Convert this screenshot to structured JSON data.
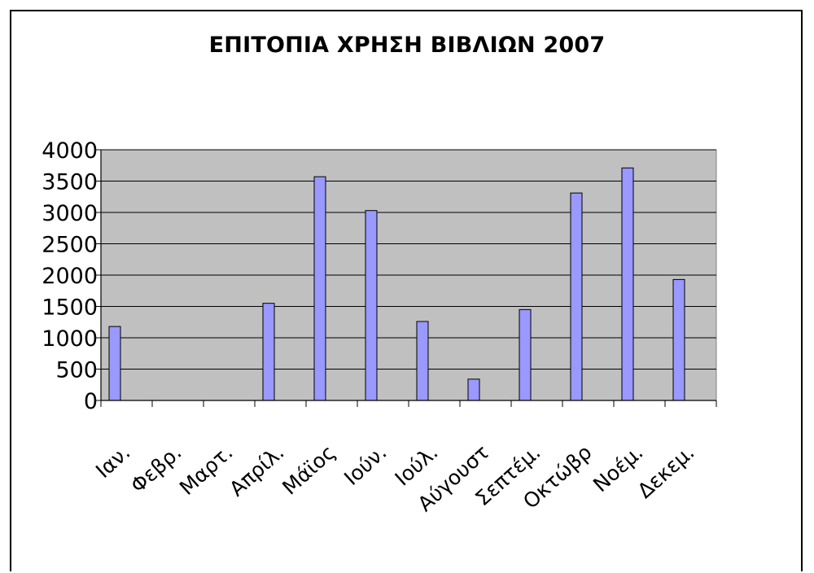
{
  "chart_data": {
    "type": "bar",
    "title": "ΕΠΙΤΟΠΙΑ ΧΡΗΣΗ ΒΙΒΛΙΩΝ 2007",
    "xlabel": "",
    "ylabel": "",
    "categories": [
      "Ιαν.",
      "Φεβρ.",
      "Μαρτ.",
      "Απρίλ.",
      "Μάϊος",
      "Ιούν.",
      "Ιούλ.",
      "Αύγουστ",
      "Σεπτέμ.",
      "Οκτώβρ",
      "Νοέμ.",
      "Δεκεμ."
    ],
    "values": [
      1180,
      0,
      0,
      1550,
      3570,
      3030,
      1260,
      340,
      1450,
      3310,
      3710,
      1930
    ],
    "ylim": [
      0,
      4000
    ],
    "yticks": [
      0,
      500,
      1000,
      1500,
      2000,
      2500,
      3000,
      3500,
      4000
    ],
    "grid": true,
    "legend": "none",
    "colors": {
      "bar": "#9999ff",
      "plot_bg": "#c0c0c0",
      "axis": "#000000"
    }
  }
}
